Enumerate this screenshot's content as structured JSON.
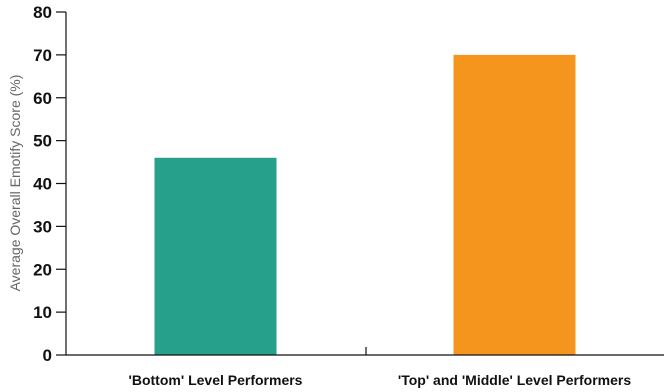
{
  "chart_data": {
    "type": "bar",
    "categories": [
      "'Bottom' Level Performers",
      "'Top' and 'Middle' Level Performers"
    ],
    "values": [
      46,
      70
    ],
    "colors": [
      "#26a08a",
      "#f5951e"
    ],
    "ylabel": "Average Overall Emotify Score (%)",
    "xlabel": "",
    "ylim": [
      0,
      80
    ],
    "yticks": [
      0,
      10,
      20,
      30,
      40,
      50,
      60,
      70,
      80
    ],
    "grid": false
  }
}
